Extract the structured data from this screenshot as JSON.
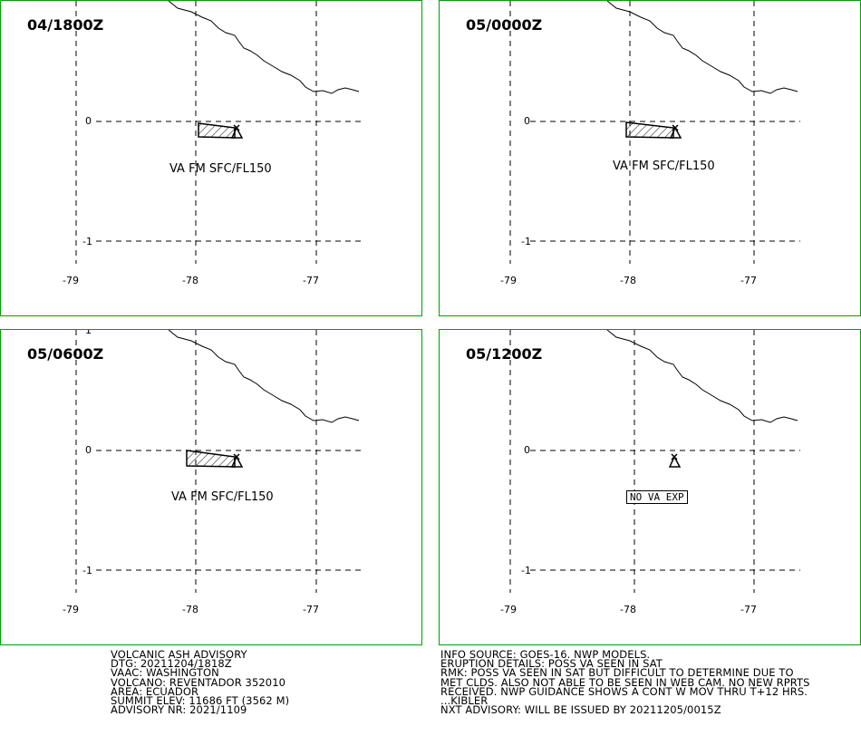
{
  "panels": [
    {
      "time": "04/1800Z",
      "label": "VA FM SFC/FL150",
      "boxed": false
    },
    {
      "time": "05/0000Z",
      "label": "VA FM SFC/FL150",
      "boxed": false
    },
    {
      "time": "05/0600Z",
      "label": "VA FM SFC/FL150",
      "boxed": false
    },
    {
      "time": "05/1200Z",
      "label": "NO VA EXP",
      "boxed": true
    }
  ],
  "ticks": {
    "lat": [
      "1",
      "0",
      "-1"
    ],
    "lon": [
      "-79",
      "-78",
      "-77"
    ]
  },
  "advisory_left": [
    "VOLCANIC ASH ADVISORY",
    "DTG: 20211204/1818Z",
    "VAAC: WASHINGTON",
    "VOLCANO: REVENTADOR 352010",
    "AREA: ECUADOR",
    "SUMMIT ELEV: 11686 FT (3562 M)",
    "ADVISORY NR: 2021/1109"
  ],
  "advisory_right": [
    "INFO SOURCE: GOES-16. NWP MODELS.",
    "ERUPTION DETAILS: POSS VA SEEN IN SAT",
    "RMK: POSS VA SEEN IN SAT BUT DIFFICULT TO DETERMINE DUE TO",
    "MET CLDS. ALSO NOT ABLE TO BE SEEN IN WEB CAM. NO NEW RPRTS",
    "RECEIVED. NWP GUIDANCE SHOWS A CONT W MOV THRU T+12 HRS.",
    "...KIBLER",
    "NXT ADVISORY: WILL BE ISSUED BY 20211205/0015Z"
  ],
  "colors": {
    "frame": "#00a000",
    "lines": "#000000"
  }
}
